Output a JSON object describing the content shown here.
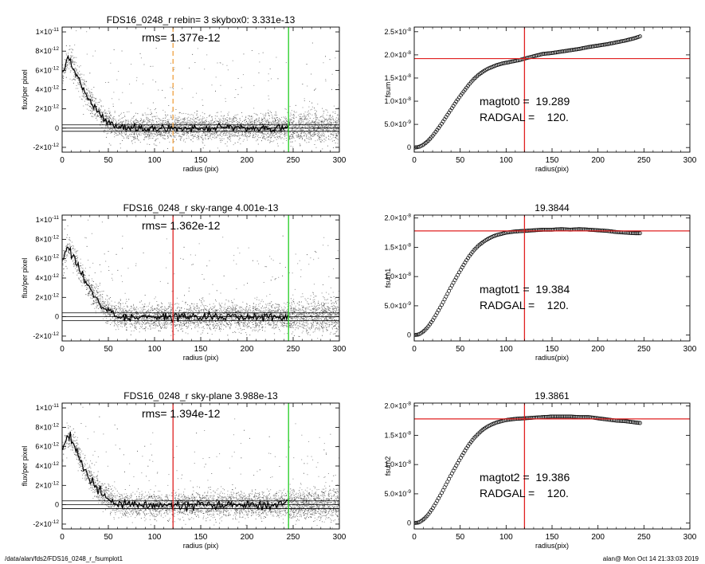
{
  "footer": {
    "path": "/data/alan/fds2/FDS16_0248_r_fsumplot1",
    "stamp": "alan@  Mon Oct 14 21:33:03 2019"
  },
  "colors": {
    "axes": "#000000",
    "scatter_light": "#9a9a9a",
    "scatter_dark": "#333333",
    "profile": "#000000",
    "radgal_line": "#e02020",
    "sky_line": "#22cc22",
    "dashed_radgal": "#f0a040",
    "fsum_marker": "#000000"
  },
  "chart_data": [
    {
      "type": "scatter",
      "panel": "left-1",
      "title": "FDS16_0248_r rebin= 3    skybox0:  3.331e-13",
      "annotation": "rms= 1.377e-12",
      "xlabel": "radius (pix)",
      "ylabel": "flux/per pixel",
      "xlim": [
        0,
        300
      ],
      "ylim": [
        -2.5e-12,
        1.05e-11
      ],
      "xticks": [
        "0",
        "50",
        "100",
        "150",
        "200",
        "250",
        "300"
      ],
      "yticks": [
        {
          "mant": "-2×10",
          "exp": "-12",
          "v": -2e-12
        },
        {
          "mant": "0",
          "exp": "",
          "v": 0
        },
        {
          "mant": "2×10",
          "exp": "-12",
          "v": 2e-12
        },
        {
          "mant": "4×10",
          "exp": "-12",
          "v": 4e-12
        },
        {
          "mant": "6×10",
          "exp": "-12",
          "v": 6e-12
        },
        {
          "mant": "8×10",
          "exp": "-12",
          "v": 8e-12
        },
        {
          "mant": "1×10",
          "exp": "-11",
          "v": 1e-11
        }
      ],
      "profile": {
        "x": [
          0,
          3,
          6,
          9,
          12,
          15,
          20,
          25,
          30,
          35,
          40,
          45,
          50,
          55,
          60,
          65,
          70,
          75,
          80,
          90,
          100,
          120,
          150,
          180,
          210,
          245
        ],
        "y": [
          5.5e-12,
          6.5e-12,
          7.2e-12,
          6.9e-12,
          6.2e-12,
          5.6e-12,
          4.6e-12,
          3.6e-12,
          2.8e-12,
          2.1e-12,
          1.5e-12,
          1e-12,
          6e-13,
          3e-13,
          1.5e-13,
          8e-14,
          4e-14,
          2e-14,
          0,
          0,
          -3e-14,
          1e-14,
          -2e-14,
          2e-14,
          -1e-14,
          1e-14
        ]
      },
      "hlines": [
        3.331e-13,
        -3.331e-13
      ],
      "vlines": [
        {
          "x": 120,
          "style": "dashed",
          "color": "#f0a040"
        },
        {
          "x": 245,
          "style": "solid",
          "color": "#22cc22"
        }
      ]
    },
    {
      "type": "scatter",
      "panel": "right-1",
      "title": "",
      "annotations": [
        "magtot0 =  19.289",
        "RADGAL =    120."
      ],
      "xlabel": "radius(pix)",
      "ylabel": "fsum",
      "xlim": [
        0,
        300
      ],
      "ylim": [
        -1e-09,
        2.6e-08
      ],
      "xticks": [
        "0",
        "50",
        "100",
        "150",
        "200",
        "250",
        "300"
      ],
      "yticks": [
        {
          "mant": "0",
          "exp": "",
          "v": 0
        },
        {
          "mant": "5.0×10",
          "exp": "-9",
          "v": 5e-09
        },
        {
          "mant": "1.0×10",
          "exp": "-8",
          "v": 1e-08
        },
        {
          "mant": "1.5×10",
          "exp": "-8",
          "v": 1.5e-08
        },
        {
          "mant": "2.0×10",
          "exp": "-8",
          "v": 2e-08
        },
        {
          "mant": "2.5×10",
          "exp": "-8",
          "v": 2.5e-08
        }
      ],
      "series": {
        "x": [
          0,
          5,
          10,
          15,
          20,
          25,
          30,
          35,
          40,
          45,
          50,
          55,
          60,
          65,
          70,
          75,
          80,
          85,
          90,
          95,
          100,
          105,
          110,
          115,
          120,
          130,
          140,
          150,
          160,
          170,
          180,
          190,
          200,
          210,
          220,
          230,
          240,
          246
        ],
        "y": [
          0,
          1e-10,
          6e-10,
          1.4e-09,
          2.5e-09,
          3.8e-09,
          5.2e-09,
          6.7e-09,
          8.2e-09,
          9.7e-09,
          1.11e-08,
          1.24e-08,
          1.37e-08,
          1.48e-08,
          1.57e-08,
          1.64e-08,
          1.7e-08,
          1.74e-08,
          1.78e-08,
          1.81e-08,
          1.83e-08,
          1.85e-08,
          1.87e-08,
          1.89e-08,
          1.92e-08,
          1.97e-08,
          2.02e-08,
          2.04e-08,
          2.07e-08,
          2.1e-08,
          2.13e-08,
          2.17e-08,
          2.2e-08,
          2.23e-08,
          2.27e-08,
          2.31e-08,
          2.36e-08,
          2.4e-08
        ]
      },
      "hlines": [
        1.92e-08
      ],
      "vlines": [
        {
          "x": 120,
          "style": "solid",
          "color": "#e02020"
        }
      ]
    },
    {
      "type": "scatter",
      "panel": "left-2",
      "title": "FDS16_0248_r sky-range  4.001e-13",
      "annotation": "rms= 1.362e-12",
      "xlabel": "radius (pix)",
      "ylabel": "flux/per pixel",
      "xlim": [
        0,
        300
      ],
      "ylim": [
        -2.5e-12,
        1.05e-11
      ],
      "xticks": [
        "0",
        "50",
        "100",
        "150",
        "200",
        "250",
        "300"
      ],
      "yticks": [
        {
          "mant": "-2×10",
          "exp": "-12",
          "v": -2e-12
        },
        {
          "mant": "0",
          "exp": "",
          "v": 0
        },
        {
          "mant": "2×10",
          "exp": "-12",
          "v": 2e-12
        },
        {
          "mant": "4×10",
          "exp": "-12",
          "v": 4e-12
        },
        {
          "mant": "6×10",
          "exp": "-12",
          "v": 6e-12
        },
        {
          "mant": "8×10",
          "exp": "-12",
          "v": 8e-12
        },
        {
          "mant": "1×10",
          "exp": "-11",
          "v": 1e-11
        }
      ],
      "profile": {
        "x": [
          0,
          3,
          6,
          9,
          12,
          15,
          20,
          25,
          30,
          35,
          40,
          45,
          50,
          55,
          60,
          65,
          70,
          75,
          80,
          90,
          100,
          120,
          150,
          180,
          210,
          245
        ],
        "y": [
          5.5e-12,
          6.5e-12,
          7.2e-12,
          6.9e-12,
          6.2e-12,
          5.6e-12,
          4.6e-12,
          3.6e-12,
          2.8e-12,
          2.1e-12,
          1.5e-12,
          1e-12,
          6e-13,
          3e-13,
          1.5e-13,
          8e-14,
          4e-14,
          2e-14,
          0,
          0,
          -3e-14,
          1e-14,
          -2e-14,
          2e-14,
          -1e-14,
          1e-14
        ]
      },
      "hlines": [
        4.001e-13,
        -4.001e-13
      ],
      "vlines": [
        {
          "x": 120,
          "style": "solid",
          "color": "#e02020"
        },
        {
          "x": 245,
          "style": "solid",
          "color": "#22cc22"
        }
      ]
    },
    {
      "type": "scatter",
      "panel": "right-2",
      "title": "19.3844",
      "annotations": [
        "magtot1 =  19.384",
        "RADGAL =    120."
      ],
      "xlabel": "radius(pix)",
      "ylabel": "fsum1",
      "xlim": [
        0,
        300
      ],
      "ylim": [
        -1e-09,
        2.05e-08
      ],
      "xticks": [
        "0",
        "50",
        "100",
        "150",
        "200",
        "250",
        "300"
      ],
      "yticks": [
        {
          "mant": "0",
          "exp": "",
          "v": 0
        },
        {
          "mant": "5.0×10",
          "exp": "-9",
          "v": 5e-09
        },
        {
          "mant": "1.0×10",
          "exp": "-8",
          "v": 1e-08
        },
        {
          "mant": "1.5×10",
          "exp": "-8",
          "v": 1.5e-08
        },
        {
          "mant": "2.0×10",
          "exp": "-8",
          "v": 2e-08
        }
      ],
      "series": {
        "x": [
          0,
          5,
          10,
          15,
          20,
          25,
          30,
          35,
          40,
          45,
          50,
          55,
          60,
          65,
          70,
          75,
          80,
          85,
          90,
          95,
          100,
          110,
          120,
          130,
          140,
          150,
          160,
          170,
          180,
          190,
          200,
          210,
          220,
          230,
          240,
          246
        ],
        "y": [
          0,
          1e-10,
          6e-10,
          1.4e-09,
          2.5e-09,
          3.8e-09,
          5.2e-09,
          6.7e-09,
          8.2e-09,
          9.6e-09,
          1.1e-08,
          1.23e-08,
          1.35e-08,
          1.45e-08,
          1.53e-08,
          1.59e-08,
          1.64e-08,
          1.68e-08,
          1.71e-08,
          1.73e-08,
          1.75e-08,
          1.77e-08,
          1.78e-08,
          1.79e-08,
          1.8e-08,
          1.8e-08,
          1.81e-08,
          1.8e-08,
          1.81e-08,
          1.8e-08,
          1.79e-08,
          1.78e-08,
          1.76e-08,
          1.75e-08,
          1.74e-08,
          1.74e-08
        ]
      },
      "hlines": [
        1.78e-08
      ],
      "vlines": [
        {
          "x": 120,
          "style": "solid",
          "color": "#e02020"
        }
      ]
    },
    {
      "type": "scatter",
      "panel": "left-3",
      "title": "FDS16_0248_r sky-plane  3.988e-13",
      "annotation": "rms= 1.394e-12",
      "xlabel": "radius (pix)",
      "ylabel": "flux/per pixel",
      "xlim": [
        0,
        300
      ],
      "ylim": [
        -2.5e-12,
        1.05e-11
      ],
      "xticks": [
        "0",
        "50",
        "100",
        "150",
        "200",
        "250",
        "300"
      ],
      "yticks": [
        {
          "mant": "-2×10",
          "exp": "-12",
          "v": -2e-12
        },
        {
          "mant": "0",
          "exp": "",
          "v": 0
        },
        {
          "mant": "2×10",
          "exp": "-12",
          "v": 2e-12
        },
        {
          "mant": "4×10",
          "exp": "-12",
          "v": 4e-12
        },
        {
          "mant": "6×10",
          "exp": "-12",
          "v": 6e-12
        },
        {
          "mant": "8×10",
          "exp": "-12",
          "v": 8e-12
        },
        {
          "mant": "1×10",
          "exp": "-11",
          "v": 1e-11
        }
      ],
      "profile": {
        "x": [
          0,
          3,
          6,
          9,
          12,
          15,
          20,
          25,
          30,
          35,
          40,
          45,
          50,
          55,
          60,
          65,
          70,
          75,
          80,
          90,
          100,
          120,
          150,
          180,
          210,
          245
        ],
        "y": [
          5.5e-12,
          6.5e-12,
          7.2e-12,
          6.9e-12,
          6.2e-12,
          5.6e-12,
          4.6e-12,
          3.6e-12,
          2.8e-12,
          2.1e-12,
          1.5e-12,
          1e-12,
          6e-13,
          3e-13,
          1.5e-13,
          8e-14,
          4e-14,
          2e-14,
          0,
          0,
          -3e-14,
          1e-14,
          -2e-14,
          2e-14,
          -1e-14,
          1e-14
        ]
      },
      "hlines": [
        3.988e-13,
        -3.988e-13
      ],
      "vlines": [
        {
          "x": 120,
          "style": "solid",
          "color": "#e02020"
        },
        {
          "x": 245,
          "style": "solid",
          "color": "#22cc22"
        }
      ]
    },
    {
      "type": "scatter",
      "panel": "right-3",
      "title": "19.3861",
      "annotations": [
        "magtot2 =  19.386",
        "RADGAL =    120."
      ],
      "xlabel": "radius(pix)",
      "ylabel": "fsum2",
      "xlim": [
        0,
        300
      ],
      "ylim": [
        -1e-09,
        2.05e-08
      ],
      "xticks": [
        "0",
        "50",
        "100",
        "150",
        "200",
        "250",
        "300"
      ],
      "yticks": [
        {
          "mant": "0",
          "exp": "",
          "v": 0
        },
        {
          "mant": "5.0×10",
          "exp": "-9",
          "v": 5e-09
        },
        {
          "mant": "1.0×10",
          "exp": "-8",
          "v": 1e-08
        },
        {
          "mant": "1.5×10",
          "exp": "-8",
          "v": 1.5e-08
        },
        {
          "mant": "2.0×10",
          "exp": "-8",
          "v": 2e-08
        }
      ],
      "series": {
        "x": [
          0,
          5,
          10,
          15,
          20,
          25,
          30,
          35,
          40,
          45,
          50,
          55,
          60,
          65,
          70,
          75,
          80,
          85,
          90,
          95,
          100,
          110,
          120,
          130,
          140,
          150,
          160,
          170,
          180,
          190,
          200,
          210,
          220,
          230,
          240,
          246
        ],
        "y": [
          0,
          1e-10,
          6e-10,
          1.4e-09,
          2.5e-09,
          3.8e-09,
          5.2e-09,
          6.7e-09,
          8.2e-09,
          9.6e-09,
          1.1e-08,
          1.23e-08,
          1.35e-08,
          1.45e-08,
          1.53e-08,
          1.6e-08,
          1.65e-08,
          1.69e-08,
          1.72e-08,
          1.74e-08,
          1.76e-08,
          1.78e-08,
          1.79e-08,
          1.8e-08,
          1.81e-08,
          1.82e-08,
          1.82e-08,
          1.82e-08,
          1.81e-08,
          1.81e-08,
          1.79e-08,
          1.77e-08,
          1.75e-08,
          1.74e-08,
          1.72e-08,
          1.71e-08
        ]
      },
      "hlines": [
        1.78e-08
      ],
      "vlines": [
        {
          "x": 120,
          "style": "solid",
          "color": "#e02020"
        }
      ]
    }
  ]
}
